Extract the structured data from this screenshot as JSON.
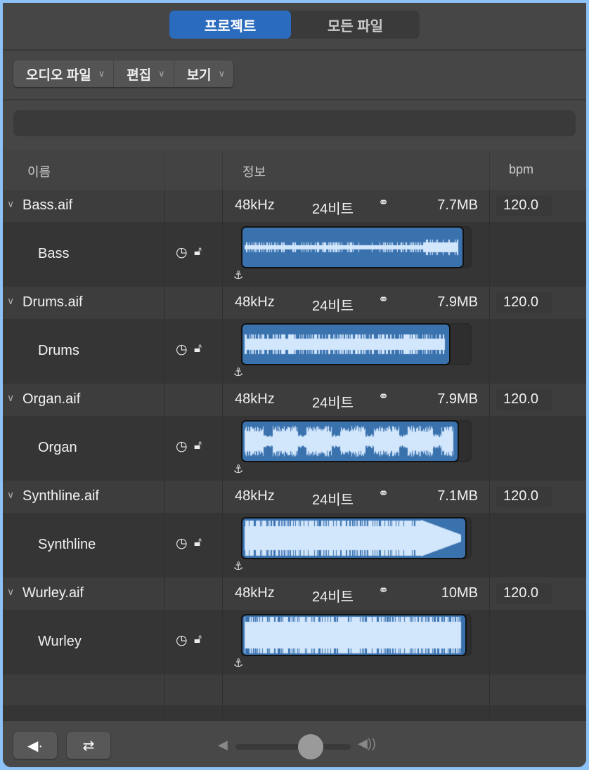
{
  "tabs": [
    {
      "label": "프로젝트",
      "selected": true
    },
    {
      "label": "모든 파일",
      "selected": false
    }
  ],
  "menus": [
    {
      "label": "오디오 파일"
    },
    {
      "label": "편집"
    },
    {
      "label": "보기"
    }
  ],
  "search": {
    "value": ""
  },
  "columns": {
    "name": "이름",
    "info": "정보",
    "bpm": "bpm"
  },
  "files": [
    {
      "name": "Bass.aif",
      "rate": "48kHz",
      "bits": "24비트",
      "size": "7.7MB",
      "bpm": "120.0",
      "region": "Bass",
      "region_fill": 0.965,
      "wave": "bass"
    },
    {
      "name": "Drums.aif",
      "rate": "48kHz",
      "bits": "24비트",
      "size": "7.9MB",
      "bpm": "120.0",
      "region": "Drums",
      "region_fill": 0.91,
      "wave": "drums"
    },
    {
      "name": "Organ.aif",
      "rate": "48kHz",
      "bits": "24비트",
      "size": "7.9MB",
      "bpm": "120.0",
      "region": "Organ",
      "region_fill": 0.945,
      "wave": "organ"
    },
    {
      "name": "Synthline.aif",
      "rate": "48kHz",
      "bits": "24비트",
      "size": "7.1MB",
      "bpm": "120.0",
      "region": "Synthline",
      "region_fill": 0.98,
      "wave": "synth"
    },
    {
      "name": "Wurley.aif",
      "rate": "48kHz",
      "bits": "24비트",
      "size": "10MB",
      "bpm": "120.0",
      "region": "Wurley",
      "region_fill": 0.98,
      "wave": "wurley"
    }
  ],
  "volume": {
    "level": 0.65
  },
  "colors": {
    "accent": "#2a6bbd",
    "region": "#3a72ae",
    "waveform": "#d2e6fc"
  },
  "icons": {
    "disclosure": "chevron-down-icon",
    "stereo": "stereo-rings-icon",
    "clock": "clock-icon",
    "lock": "unlock-icon",
    "anchor": "anchor-icon",
    "preview": "speaker-icon",
    "loop": "loop-icon"
  }
}
